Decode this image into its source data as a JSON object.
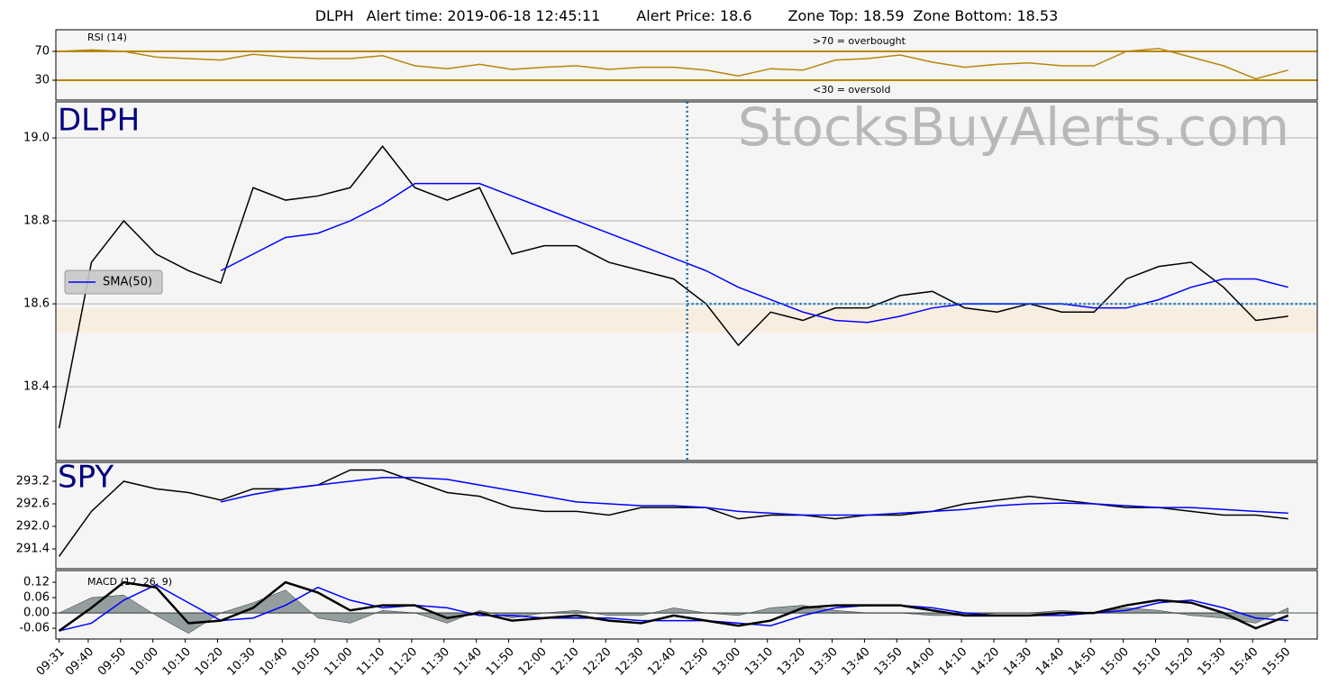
{
  "chart_data": {
    "type": "line",
    "alert": {
      "symbol": "DLPH",
      "time_label": "Alert time:",
      "time": "2019-06-18 12:45:11",
      "price_label": "Alert Price:",
      "price": 18.6,
      "zone_top_label": "Zone Top:",
      "zone_top": 18.59,
      "zone_bottom_label": "Zone Bottom:",
      "zone_bottom": 18.53
    },
    "watermark": "StocksBuyAlerts.com",
    "x": [
      "09:31",
      "09:41",
      "09:51",
      "10:01",
      "10:11",
      "10:21",
      "10:31",
      "10:41",
      "10:51",
      "11:01",
      "11:11",
      "11:21",
      "11:31",
      "11:41",
      "11:51",
      "12:01",
      "12:11",
      "12:21",
      "12:31",
      "12:41",
      "12:51",
      "13:01",
      "13:11",
      "13:21",
      "13:31",
      "13:41",
      "13:51",
      "14:01",
      "14:11",
      "14:21",
      "14:31",
      "14:41",
      "14:51",
      "15:01",
      "15:11",
      "15:21",
      "15:31",
      "15:41",
      "15:51"
    ],
    "xlim": [
      "09:30",
      "16:00"
    ],
    "xticks": [
      "09:31",
      "09:40",
      "09:50",
      "10:00",
      "10:10",
      "10:20",
      "10:30",
      "10:40",
      "10:50",
      "11:00",
      "11:10",
      "11:20",
      "11:30",
      "11:40",
      "11:50",
      "12:00",
      "12:10",
      "12:20",
      "12:30",
      "12:40",
      "12:50",
      "13:00",
      "13:10",
      "13:20",
      "13:30",
      "13:40",
      "13:50",
      "14:00",
      "14:10",
      "14:20",
      "14:30",
      "14:40",
      "14:50",
      "15:00",
      "15:10",
      "15:20",
      "15:30",
      "15:40",
      "15:50"
    ],
    "panels": [
      {
        "label": "RSI (14)",
        "ylim": [
          2.5,
          100
        ],
        "yticks": [
          70,
          30
        ],
        "grid": true,
        "grid_color": "#b8860b",
        "annotations": [
          ">70 = overbought",
          "<30 = oversold"
        ],
        "series": [
          {
            "color": "#b8860b",
            "values": [
              70,
              72,
              70,
              62,
              60,
              58,
              66,
              62,
              60,
              60,
              64,
              50,
              46,
              52,
              45,
              48,
              50,
              45,
              48,
              48,
              44,
              36,
              46,
              44,
              58,
              60,
              65,
              55,
              48,
              52,
              54,
              50,
              50,
              70,
              74,
              62,
              50,
              32,
              44
            ]
          }
        ]
      },
      {
        "label": "DLPH",
        "ylim": [
          18.222,
          19.087
        ],
        "yticks": [
          {
            "value": 19,
            "label": "19.0"
          },
          18.8,
          18.6,
          18.4
        ],
        "grid": true,
        "grid_color": "#b0b0b0",
        "legend": "upper left",
        "series": [
          {
            "color": "#000000",
            "values": [
              18.3,
              18.7,
              18.8,
              18.72,
              18.68,
              18.65,
              18.88,
              18.85,
              18.86,
              18.88,
              18.98,
              18.88,
              18.85,
              18.88,
              18.72,
              18.74,
              18.74,
              18.7,
              18.68,
              18.66,
              18.6,
              18.5,
              18.58,
              18.56,
              18.59,
              18.59,
              18.62,
              18.63,
              18.59,
              18.58,
              18.6,
              18.58,
              18.58,
              18.66,
              18.69,
              18.7,
              18.64,
              18.56,
              18.57
            ]
          },
          {
            "name": "SMA(50)",
            "color": "#0000ff",
            "values": [
              null,
              null,
              null,
              null,
              null,
              18.68,
              18.72,
              18.76,
              18.77,
              18.8,
              18.84,
              18.89,
              18.89,
              18.89,
              18.86,
              18.83,
              18.8,
              18.77,
              18.74,
              18.71,
              18.68,
              18.64,
              18.61,
              18.58,
              18.56,
              18.555,
              18.57,
              18.59,
              18.6,
              18.6,
              18.6,
              18.6,
              18.59,
              18.59,
              18.61,
              18.64,
              18.66,
              18.66,
              18.64
            ]
          }
        ]
      },
      {
        "label": "SPY",
        "ylim": [
          290.872,
          293.704
        ],
        "yticks": [
          293.2,
          292.6,
          {
            "value": 292,
            "label": "292.0"
          },
          291.4
        ],
        "grid": false,
        "series": [
          {
            "color": "#000000",
            "values": [
              291.2,
              292.4,
              293.2,
              293,
              292.9,
              292.7,
              293,
              293,
              293.1,
              293.5,
              293.5,
              293.2,
              292.9,
              292.8,
              292.5,
              292.4,
              292.4,
              292.3,
              292.5,
              292.5,
              292.5,
              292.2,
              292.3,
              292.3,
              292.2,
              292.3,
              292.3,
              292.4,
              292.6,
              292.7,
              292.8,
              292.7,
              292.6,
              292.5,
              292.5,
              292.4,
              292.3,
              292.3,
              292.2
            ]
          },
          {
            "color": "#0000ff",
            "values": [
              null,
              null,
              null,
              null,
              null,
              292.65,
              292.85,
              293,
              293.1,
              293.2,
              293.3,
              293.3,
              293.25,
              293.1,
              292.95,
              292.8,
              292.65,
              292.6,
              292.55,
              292.55,
              292.5,
              292.4,
              292.35,
              292.3,
              292.3,
              292.3,
              292.35,
              292.4,
              292.45,
              292.55,
              292.6,
              292.62,
              292.6,
              292.55,
              292.5,
              292.5,
              292.45,
              292.4,
              292.35
            ]
          }
        ]
      },
      {
        "label": "MACD (12, 26, 9)",
        "ylim": [
          -0.102,
          0.166
        ],
        "yticks": [
          0.12,
          0.06,
          {
            "value": 0,
            "label": "0.00"
          },
          -0.06
        ],
        "grid": false,
        "series": [
          {
            "color": "#5f6f6f",
            "fill": true,
            "values": [
              0,
              0.06,
              0.07,
              -0.01,
              -0.08,
              0,
              0.04,
              0.09,
              -0.02,
              -0.04,
              0.01,
              0,
              -0.04,
              0.01,
              -0.02,
              0,
              0.01,
              -0.01,
              -0.01,
              0.02,
              0,
              -0.01,
              0.02,
              0.03,
              0.01,
              0,
              0,
              -0.01,
              -0.01,
              0,
              0,
              0.01,
              0,
              0.02,
              0.01,
              -0.01,
              -0.02,
              -0.04,
              0.02
            ]
          },
          {
            "color": "#0000ff",
            "values": [
              -0.07,
              -0.04,
              0.05,
              0.11,
              0.04,
              -0.03,
              -0.02,
              0.03,
              0.1,
              0.05,
              0.02,
              0.03,
              0.02,
              -0.01,
              -0.01,
              -0.02,
              -0.02,
              -0.02,
              -0.03,
              -0.03,
              -0.03,
              -0.04,
              -0.05,
              -0.01,
              0.02,
              0.03,
              0.03,
              0.02,
              0,
              -0.01,
              -0.01,
              -0.01,
              0,
              0.01,
              0.04,
              0.05,
              0.02,
              -0.02,
              -0.03
            ]
          },
          {
            "color": "#000000",
            "values": [
              -0.07,
              0.02,
              0.12,
              0.1,
              -0.04,
              -0.03,
              0.02,
              0.12,
              0.08,
              0.01,
              0.03,
              0.03,
              -0.02,
              0,
              -0.03,
              -0.02,
              -0.01,
              -0.03,
              -0.04,
              -0.01,
              -0.03,
              -0.05,
              -0.03,
              0.02,
              0.03,
              0.03,
              0.03,
              0.01,
              -0.01,
              -0.01,
              -0.01,
              0,
              0,
              0.03,
              0.05,
              0.04,
              0,
              -0.06,
              -0.01
            ]
          }
        ]
      }
    ]
  }
}
